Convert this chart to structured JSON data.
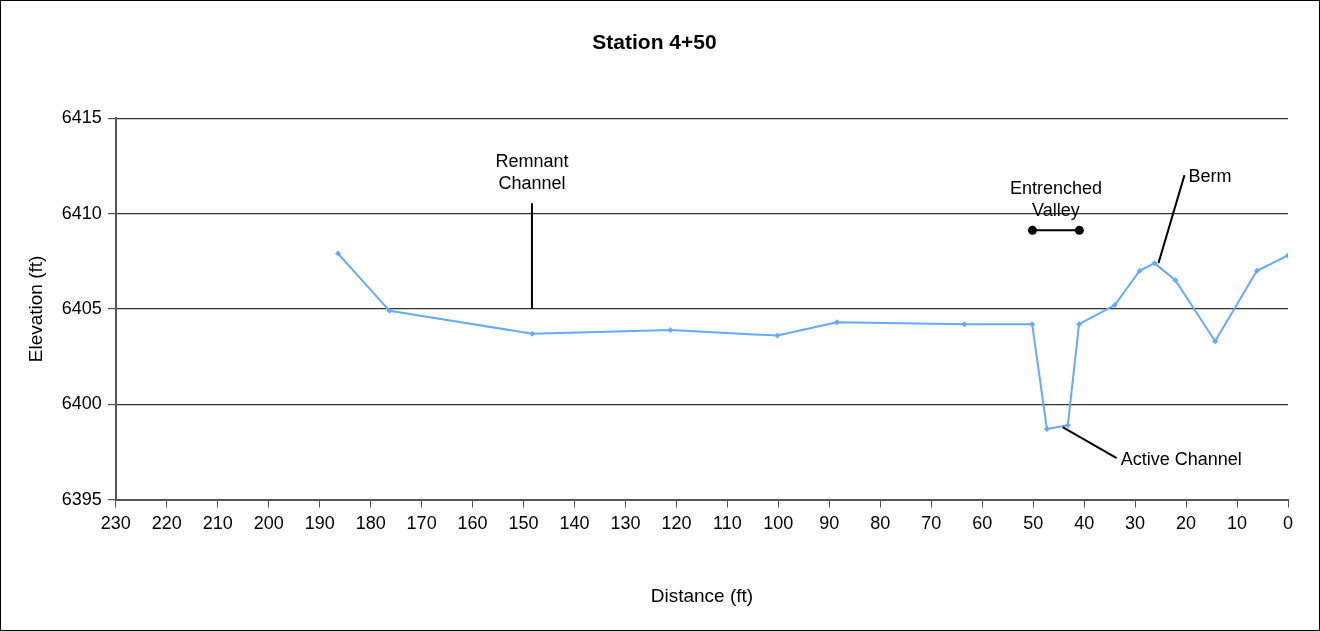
{
  "chart_data": {
    "type": "line",
    "title": "Station 4+50",
    "xlabel": "Distance (ft)",
    "ylabel": "Elevation (ft)",
    "x": [
      186.4,
      176.3,
      148.3,
      121.2,
      100.2,
      88.5,
      63.5,
      50.2,
      47.3,
      43.2,
      41.0,
      34.0,
      29.1,
      26.2,
      22.1,
      14.3,
      6.1,
      0
    ],
    "series": [
      {
        "color": "#66aaff",
        "values": [
          6407.9,
          6404.9,
          6403.7,
          6403.9,
          6403.6,
          6404.3,
          6404.2,
          6404.2,
          6398.7,
          6398.9,
          6404.2,
          6405.2,
          6407.0,
          6407.4,
          6406.5,
          6403.3,
          6407.0,
          6407.8
        ]
      }
    ],
    "xlim": [
      230,
      0
    ],
    "xticks": [
      230,
      220,
      210,
      200,
      190,
      180,
      170,
      160,
      150,
      140,
      130,
      120,
      110,
      100,
      90,
      80,
      70,
      60,
      50,
      40,
      30,
      20,
      10,
      0
    ],
    "ylim": [
      6395,
      6415
    ],
    "yticks": [
      6395,
      6400,
      6405,
      6410,
      6415
    ],
    "grid": "y",
    "legend": false,
    "marker": "diamond",
    "line_style": "solid",
    "annotations": [
      "Remnant Channel",
      {
        "text": "Berm",
        "x": 26.2,
        "y": 6407.4
      },
      {
        "text": "Active Channel",
        "x": 45,
        "y": 6398.8
      },
      "Entrenched Valley"
    ]
  }
}
